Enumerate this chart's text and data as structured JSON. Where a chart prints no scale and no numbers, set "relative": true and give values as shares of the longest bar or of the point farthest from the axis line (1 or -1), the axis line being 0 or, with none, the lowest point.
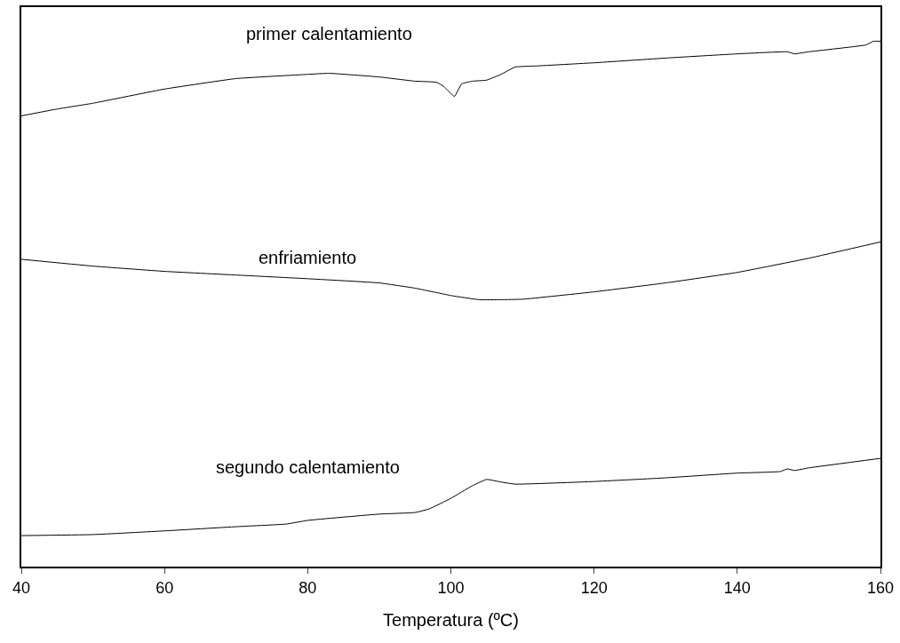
{
  "chart_data": {
    "type": "line",
    "relative": true,
    "xlabel": "Temperatura (ºC)",
    "xlim": [
      40,
      160
    ],
    "xticks": [
      40,
      60,
      80,
      100,
      120,
      140,
      160
    ],
    "legend": false,
    "series": [
      {
        "name": "primer calentamiento",
        "color": "#000000",
        "x": [
          40,
          45,
          50,
          60,
          70,
          80,
          83,
          90,
          95,
          98,
          99,
          100.5,
          101.5,
          103,
          105,
          107,
          109,
          112,
          120,
          130,
          140,
          147,
          148,
          150,
          158,
          159,
          160
        ],
        "values": [
          0.858,
          0.871,
          0.882,
          0.909,
          0.929,
          0.937,
          0.939,
          0.932,
          0.924,
          0.922,
          0.914,
          0.895,
          0.919,
          0.924,
          0.926,
          0.937,
          0.951,
          0.953,
          0.959,
          0.968,
          0.976,
          0.98,
          0.976,
          0.98,
          0.993,
          1,
          1
        ]
      },
      {
        "name": "enfriamiento",
        "color": "#000000",
        "x": [
          40,
          50,
          60,
          70,
          80,
          90,
          95,
          100,
          104,
          110,
          120,
          130,
          140,
          150,
          160
        ],
        "values": [
          0.585,
          0.572,
          0.562,
          0.555,
          0.548,
          0.54,
          0.53,
          0.516,
          0.508,
          0.509,
          0.523,
          0.54,
          0.56,
          0.587,
          0.618
        ]
      },
      {
        "name": "segundo calentamiento",
        "color": "#000000",
        "x": [
          40,
          50,
          60,
          70,
          77,
          80,
          90,
          95,
          97,
          100,
          103,
          105,
          107,
          109,
          120,
          130,
          140,
          146,
          147,
          148,
          150,
          160
        ],
        "values": [
          0.059,
          0.061,
          0.068,
          0.076,
          0.081,
          0.088,
          0.1,
          0.103,
          0.11,
          0.13,
          0.154,
          0.166,
          0.161,
          0.157,
          0.162,
          0.169,
          0.178,
          0.181,
          0.186,
          0.183,
          0.188,
          0.206
        ]
      }
    ]
  }
}
